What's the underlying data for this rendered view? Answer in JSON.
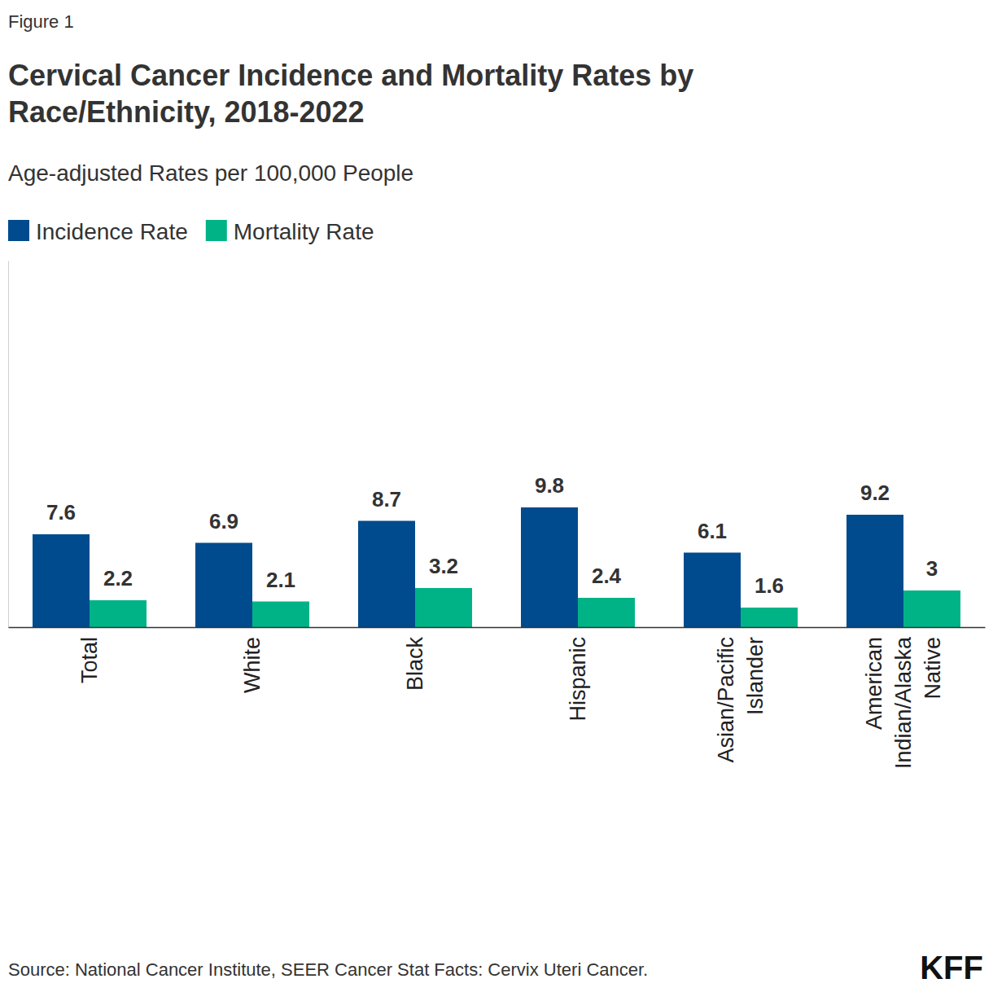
{
  "chart_data": {
    "type": "bar",
    "figure_label": "Figure 1",
    "title": "Cervical Cancer Incidence and Mortality Rates by Race/Ethnicity, 2018-2022",
    "subtitle": "Age-adjusted Rates per 100,000 People",
    "source": "Source: National Cancer Institute, SEER Cancer Stat Facts: Cervix Uteri Cancer.",
    "logo": "KFF",
    "categories": [
      "Total",
      "White",
      "Black",
      "Hispanic",
      "Asian/Pacific Islander",
      "American Indian/Alaska Native"
    ],
    "series": [
      {
        "name": "Incidence Rate",
        "color": "#004b8d",
        "values": [
          7.6,
          6.9,
          8.7,
          9.8,
          6.1,
          9.2
        ]
      },
      {
        "name": "Mortality Rate",
        "color": "#00b386",
        "values": [
          2.2,
          2.1,
          3.2,
          2.4,
          1.6,
          3.0
        ]
      }
    ],
    "ylim": [
      0,
      30
    ],
    "yticks": [],
    "data_labels": true,
    "tick_labels": "x",
    "legend": "top-left"
  }
}
